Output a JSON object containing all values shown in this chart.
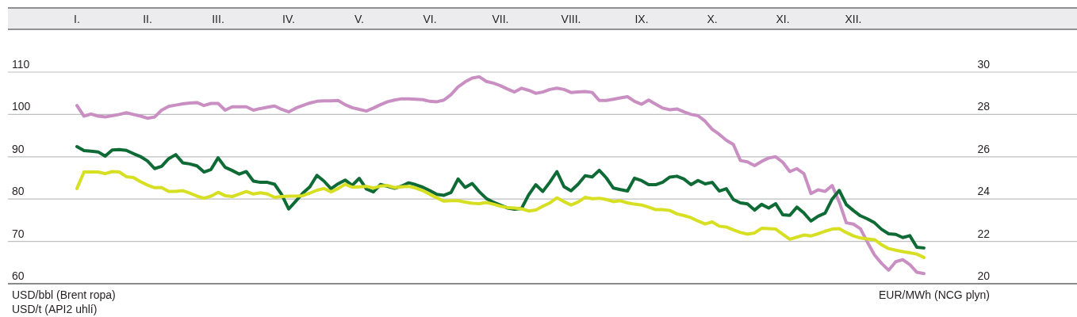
{
  "chart_data": {
    "type": "line",
    "categories": [
      "I.",
      null,
      null,
      null,
      null,
      null,
      null,
      null,
      null,
      null,
      "II.",
      null,
      null,
      null,
      null,
      null,
      null,
      null,
      null,
      null,
      "III.",
      null,
      null,
      null,
      null,
      null,
      null,
      null,
      null,
      null,
      "IV.",
      null,
      null,
      null,
      null,
      null,
      null,
      null,
      null,
      null,
      "V.",
      null,
      null,
      null,
      null,
      null,
      null,
      null,
      null,
      null,
      "VI.",
      null,
      null,
      null,
      null,
      null,
      null,
      null,
      null,
      null,
      "VII.",
      null,
      null,
      null,
      null,
      null,
      null,
      null,
      null,
      null,
      "VIII.",
      null,
      null,
      null,
      null,
      null,
      null,
      null,
      null,
      null,
      "IX.",
      null,
      null,
      null,
      null,
      null,
      null,
      null,
      null,
      null,
      "X.",
      null,
      null,
      null,
      null,
      null,
      null,
      null,
      null,
      null,
      "XI.",
      null,
      null,
      null,
      null,
      null,
      null,
      null,
      null,
      null,
      "XII.",
      null,
      null,
      null,
      null,
      null,
      null,
      null,
      null,
      null,
      null
    ],
    "ylim": [
      60,
      110
    ],
    "yticks": [
      60,
      70,
      80,
      90,
      100,
      110
    ],
    "y2lim": [
      20,
      30
    ],
    "y2ticks": [
      20,
      22,
      24,
      26,
      28,
      30
    ],
    "ylabel": "USD/bbl (Brent ropa)\nUSD/t (API2 uhlí)",
    "y2label": "EUR/MWh (NCG plyn)",
    "grid": "y",
    "line_style": "solid",
    "series": [
      {
        "color": "#c98fc2",
        "values": [
          102.1,
          99.6,
          100.1,
          99.6,
          99.4,
          99.7,
          100.0,
          100.4,
          100.0,
          99.6,
          99.1,
          99.4,
          101.0,
          101.9,
          102.2,
          102.5,
          102.7,
          102.8,
          102.1,
          102.6,
          102.6,
          101.0,
          101.8,
          101.8,
          101.8,
          101.0,
          101.4,
          101.7,
          102.0,
          101.2,
          100.6,
          101.5,
          102.1,
          102.7,
          103.1,
          103.2,
          103.2,
          103.3,
          102.3,
          101.6,
          101.2,
          100.8,
          101.5,
          102.3,
          103.0,
          103.4,
          103.7,
          103.7,
          103.6,
          103.5,
          103.1,
          103.0,
          103.4,
          104.7,
          106.5,
          107.7,
          108.6,
          108.9,
          107.8,
          107.4,
          106.8,
          106.0,
          105.3,
          106.2,
          105.7,
          105.0,
          105.3,
          105.9,
          106.2,
          105.9,
          105.2,
          105.3,
          105.4,
          105.2,
          103.3,
          103.3,
          103.6,
          103.9,
          104.2,
          103.1,
          102.4,
          103.4,
          102.4,
          101.5,
          101.1,
          101.3,
          100.6,
          100.0,
          99.7,
          98.4,
          96.5,
          95.3,
          93.9,
          92.9,
          89.1,
          88.8,
          87.9,
          88.9,
          89.7,
          90.0,
          88.7,
          86.5,
          87.2,
          86.0,
          81.3,
          82.2,
          81.8,
          83.2,
          79.3,
          74.4,
          74.1,
          73.0,
          69.8,
          66.8,
          64.8,
          63.2,
          65.2,
          65.7,
          64.5,
          62.7,
          62.4
        ]
      },
      {
        "color": "#0f6b35",
        "axis": "y2",
        "values": [
          26.48,
          26.29,
          26.26,
          26.23,
          26.03,
          26.32,
          26.34,
          26.3,
          26.15,
          26.01,
          25.8,
          25.44,
          25.55,
          25.91,
          26.1,
          25.71,
          25.66,
          25.57,
          25.28,
          25.4,
          25.95,
          25.5,
          25.35,
          25.18,
          25.3,
          24.85,
          24.79,
          24.79,
          24.7,
          24.22,
          23.53,
          23.9,
          24.28,
          24.58,
          25.12,
          24.85,
          24.49,
          24.72,
          24.9,
          24.65,
          24.98,
          24.48,
          24.34,
          24.69,
          24.6,
          24.51,
          24.61,
          24.77,
          24.68,
          24.56,
          24.4,
          24.22,
          24.18,
          24.31,
          24.95,
          24.55,
          24.74,
          24.35,
          24.03,
          23.85,
          23.71,
          23.58,
          23.52,
          23.56,
          24.2,
          24.68,
          24.36,
          24.8,
          25.3,
          24.59,
          24.39,
          24.7,
          25.1,
          25.05,
          25.36,
          25.0,
          24.52,
          24.45,
          24.38,
          24.99,
          24.87,
          24.68,
          24.68,
          24.8,
          25.04,
          25.08,
          24.95,
          24.68,
          24.88,
          24.72,
          24.79,
          24.38,
          24.49,
          23.98,
          23.82,
          23.77,
          23.48,
          23.75,
          23.58,
          23.78,
          23.26,
          23.23,
          23.62,
          23.34,
          22.96,
          23.19,
          23.34,
          24.0,
          24.41,
          23.74,
          23.46,
          23.21,
          23.06,
          22.88,
          22.57,
          22.36,
          22.33,
          22.18,
          22.27,
          21.72,
          21.69
        ]
      },
      {
        "color": "#d7df23",
        "values": [
          82.5,
          86.4,
          86.4,
          86.4,
          86.0,
          86.5,
          86.4,
          85.3,
          85.1,
          84.1,
          83.3,
          82.7,
          82.7,
          81.8,
          81.8,
          82.0,
          81.4,
          80.7,
          80.2,
          80.7,
          81.6,
          80.8,
          80.6,
          81.2,
          81.8,
          81.2,
          81.5,
          81.2,
          80.4,
          80.6,
          80.7,
          80.7,
          80.8,
          81.4,
          82.1,
          82.5,
          81.7,
          82.5,
          83.5,
          82.8,
          82.9,
          83.0,
          82.6,
          83.1,
          83.2,
          82.7,
          82.9,
          83.0,
          82.6,
          82.0,
          81.1,
          80.3,
          79.5,
          79.6,
          79.6,
          79.3,
          79.0,
          78.9,
          79.2,
          78.8,
          78.3,
          78.0,
          77.9,
          77.7,
          77.2,
          77.4,
          78.3,
          79.1,
          80.3,
          79.4,
          78.6,
          79.3,
          80.4,
          80.1,
          80.2,
          79.9,
          79.4,
          79.6,
          79.1,
          78.8,
          78.6,
          78.1,
          77.5,
          77.5,
          77.3,
          76.5,
          76.1,
          75.6,
          74.8,
          74.1,
          74.6,
          73.6,
          73.4,
          72.7,
          72.1,
          71.7,
          72.0,
          73.1,
          73.0,
          72.9,
          71.7,
          70.5,
          71.0,
          71.5,
          71.3,
          71.8,
          72.4,
          72.9,
          73.0,
          72.1,
          71.3,
          70.8,
          70.6,
          70.4,
          69.2,
          68.3,
          67.9,
          67.6,
          67.3,
          67.0,
          66.2
        ]
      }
    ]
  }
}
